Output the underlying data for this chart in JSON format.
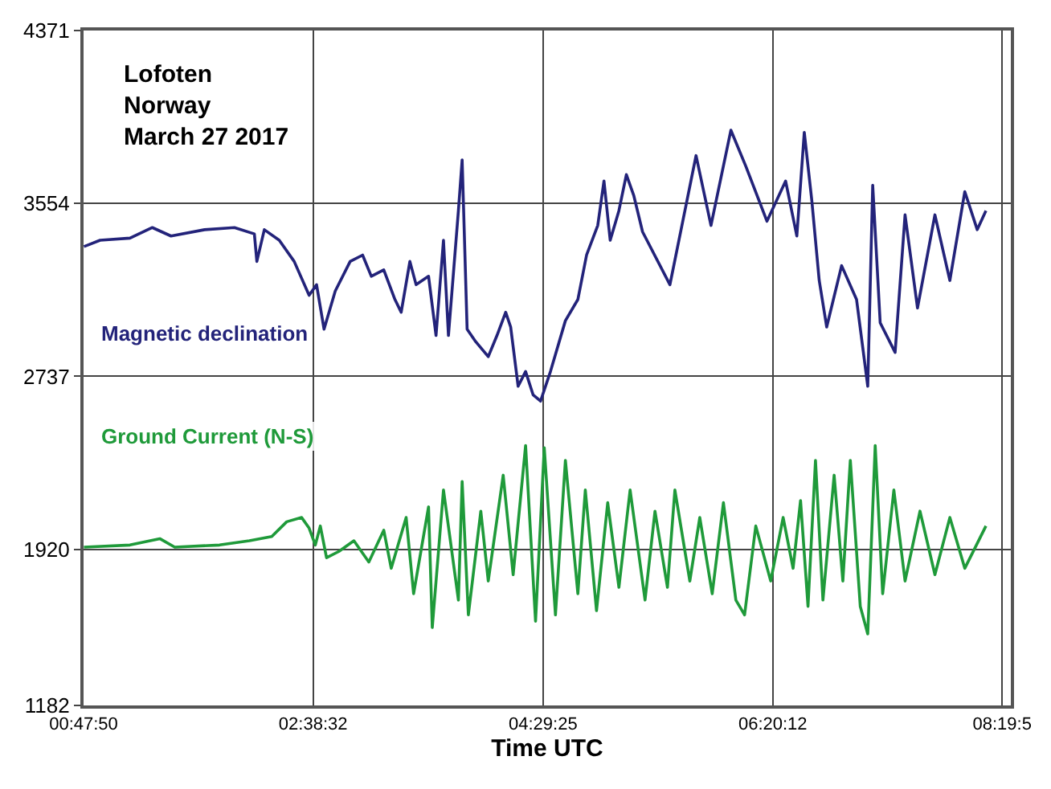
{
  "chart_data": {
    "type": "line",
    "xlabel": "Time UTC",
    "annotations": [
      "Lofoten\nNorway\nMarch 27 2017"
    ],
    "xlim": [
      0.7972,
      8.25
    ],
    "ylim": [
      1182,
      4371
    ],
    "xticks": [
      {
        "value": 0.7972,
        "label": "00:47:50"
      },
      {
        "value": 2.6422,
        "label": "02:38:32"
      },
      {
        "value": 4.4903,
        "label": "04:29:25"
      },
      {
        "value": 6.3367,
        "label": "06:20:12"
      },
      {
        "value": 8.18,
        "label": "08:19:5"
      }
    ],
    "yticks": [
      1182,
      1920,
      2737,
      3554,
      4371
    ],
    "grid": true,
    "legend": false,
    "marker": "none",
    "line_style": "solid",
    "series": [
      {
        "name": "Magnetic declination",
        "color": "#23237a",
        "x": [
          0.8,
          0.93,
          1.17,
          1.35,
          1.5,
          1.77,
          2.01,
          2.17,
          2.19,
          2.25,
          2.37,
          2.49,
          2.61,
          2.67,
          2.73,
          2.82,
          2.94,
          3.04,
          3.11,
          3.21,
          3.3,
          3.35,
          3.42,
          3.47,
          3.57,
          3.63,
          3.69,
          3.73,
          3.81,
          3.84,
          3.88,
          3.95,
          4.05,
          4.12,
          4.19,
          4.23,
          4.29,
          4.35,
          4.41,
          4.47,
          4.55,
          4.67,
          4.77,
          4.84,
          4.93,
          4.98,
          5.03,
          5.1,
          5.16,
          5.22,
          5.29,
          5.51,
          5.72,
          5.84,
          6.0,
          6.12,
          6.29,
          6.44,
          6.53,
          6.59,
          6.65,
          6.71,
          6.77,
          6.89,
          7.01,
          7.1,
          7.14,
          7.2,
          7.32,
          7.4,
          7.5,
          7.64,
          7.76,
          7.88,
          7.98,
          8.05
        ],
        "values": [
          3350,
          3380,
          3390,
          3440,
          3400,
          3430,
          3440,
          3410,
          3280,
          3430,
          3380,
          3280,
          3120,
          3170,
          2960,
          3140,
          3280,
          3310,
          3210,
          3240,
          3100,
          3040,
          3280,
          3170,
          3210,
          2930,
          3380,
          2930,
          3520,
          3760,
          2960,
          2900,
          2830,
          2930,
          3040,
          2970,
          2690,
          2760,
          2650,
          2620,
          2760,
          3000,
          3100,
          3310,
          3450,
          3660,
          3380,
          3520,
          3690,
          3590,
          3420,
          3170,
          3780,
          3450,
          3900,
          3730,
          3470,
          3660,
          3400,
          3890,
          3570,
          3190,
          2970,
          3260,
          3100,
          2690,
          3640,
          2990,
          2850,
          3500,
          3060,
          3500,
          3190,
          3610,
          3430,
          3520
        ]
      },
      {
        "name": "Ground Current (N-S)",
        "color": "#1f9a3a",
        "x": [
          0.8,
          1.17,
          1.41,
          1.53,
          1.89,
          2.13,
          2.31,
          2.43,
          2.55,
          2.61,
          2.66,
          2.7,
          2.75,
          2.85,
          2.97,
          3.09,
          3.21,
          3.27,
          3.39,
          3.45,
          3.57,
          3.6,
          3.69,
          3.81,
          3.84,
          3.89,
          3.99,
          4.05,
          4.17,
          4.25,
          4.35,
          4.43,
          4.5,
          4.59,
          4.67,
          4.77,
          4.83,
          4.92,
          5.01,
          5.1,
          5.19,
          5.31,
          5.39,
          5.49,
          5.55,
          5.67,
          5.75,
          5.85,
          5.94,
          6.04,
          6.11,
          6.2,
          6.32,
          6.42,
          6.5,
          6.56,
          6.62,
          6.68,
          6.74,
          6.83,
          6.9,
          6.96,
          7.04,
          7.1,
          7.16,
          7.22,
          7.31,
          7.4,
          7.52,
          7.64,
          7.76,
          7.88,
          8.05
        ],
        "values": [
          1930,
          1940,
          1970,
          1930,
          1940,
          1960,
          1980,
          2050,
          2070,
          2020,
          1940,
          2030,
          1880,
          1910,
          1960,
          1860,
          2010,
          1830,
          2070,
          1710,
          2120,
          1550,
          2200,
          1680,
          2240,
          1610,
          2100,
          1770,
          2270,
          1800,
          2410,
          1580,
          2400,
          1610,
          2340,
          1710,
          2200,
          1630,
          2140,
          1740,
          2200,
          1680,
          2100,
          1740,
          2200,
          1770,
          2070,
          1710,
          2140,
          1680,
          1610,
          2030,
          1770,
          2070,
          1830,
          2150,
          1650,
          2340,
          1680,
          2270,
          1770,
          2340,
          1650,
          1520,
          2410,
          1710,
          2200,
          1770,
          2100,
          1800,
          2070,
          1830,
          2030
        ]
      }
    ]
  }
}
